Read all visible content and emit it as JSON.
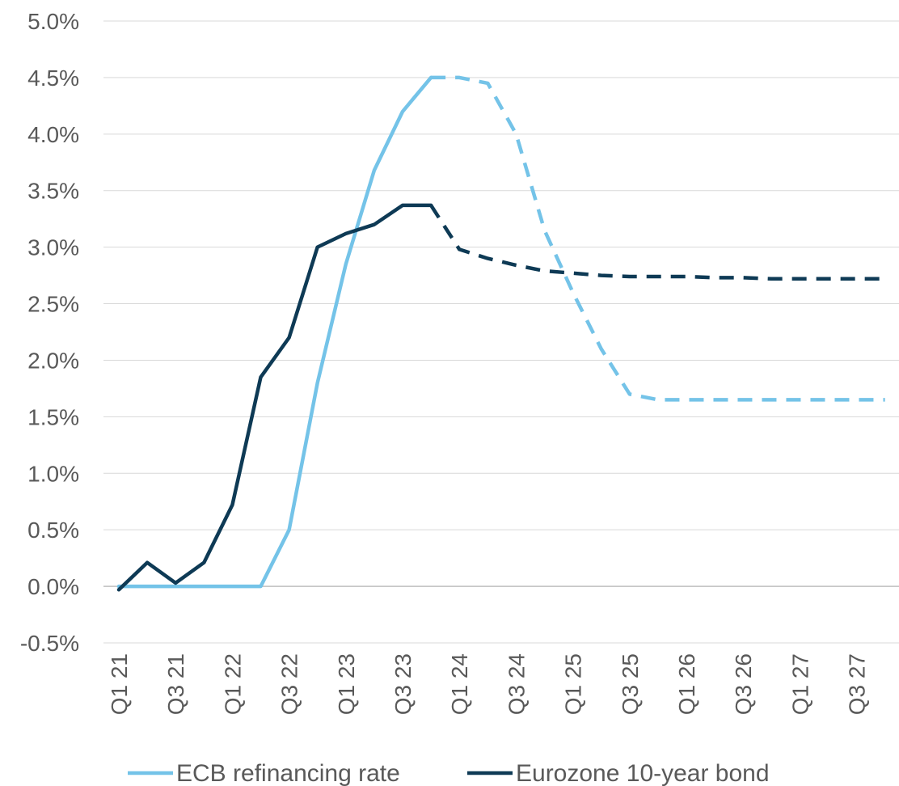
{
  "chart_data": {
    "type": "line",
    "ylim": [
      -0.5,
      5.0
    ],
    "y_ticks": [
      "5.0%",
      "4.5%",
      "4.0%",
      "3.5%",
      "3.0%",
      "2.5%",
      "2.0%",
      "1.5%",
      "1.0%",
      "0.5%",
      "0.0%",
      "-0.5%"
    ],
    "y_tick_values": [
      5.0,
      4.5,
      4.0,
      3.5,
      3.0,
      2.5,
      2.0,
      1.5,
      1.0,
      0.5,
      0.0,
      -0.5
    ],
    "grid": true,
    "legend_position": "bottom",
    "categories": [
      "Q1 21",
      "Q2 21",
      "Q3 21",
      "Q4 21",
      "Q1 22",
      "Q2 22",
      "Q3 22",
      "Q4 22",
      "Q1 23",
      "Q2 23",
      "Q3 23",
      "Q4 23",
      "Q1 24",
      "Q2 24",
      "Q3 24",
      "Q4 24",
      "Q1 25",
      "Q2 25",
      "Q3 25",
      "Q4 25",
      "Q1 26",
      "Q2 26",
      "Q3 26",
      "Q4 26",
      "Q1 27",
      "Q2 27",
      "Q3 27",
      "Q4 27"
    ],
    "x_tick_labels": [
      "Q1 21",
      "Q3 21",
      "Q1 22",
      "Q3 22",
      "Q1 23",
      "Q3 23",
      "Q1 24",
      "Q3 24",
      "Q1 25",
      "Q3 25",
      "Q1 26",
      "Q3 26",
      "Q1 27",
      "Q3 27"
    ],
    "series": [
      {
        "name": "ECB refinancing rate",
        "color": "#74C3E8",
        "values": [
          0.0,
          0.0,
          0.0,
          0.0,
          0.0,
          0.0,
          0.5,
          1.8,
          2.85,
          3.68,
          4.2,
          4.5,
          4.5,
          4.45,
          4.0,
          3.15,
          2.6,
          2.1,
          1.7,
          1.65,
          1.65,
          1.65,
          1.65,
          1.65,
          1.65,
          1.65,
          1.65,
          1.65
        ],
        "actual_until_index": 11
      },
      {
        "name": "Eurozone 10-year bond",
        "color": "#0E3A55",
        "values": [
          -0.03,
          0.21,
          0.03,
          0.21,
          0.72,
          1.85,
          2.2,
          3.0,
          3.12,
          3.2,
          3.37,
          3.37,
          2.98,
          2.9,
          2.84,
          2.79,
          2.77,
          2.75,
          2.74,
          2.74,
          2.74,
          2.73,
          2.73,
          2.72,
          2.72,
          2.72,
          2.72,
          2.72
        ],
        "actual_until_index": 11
      }
    ]
  }
}
